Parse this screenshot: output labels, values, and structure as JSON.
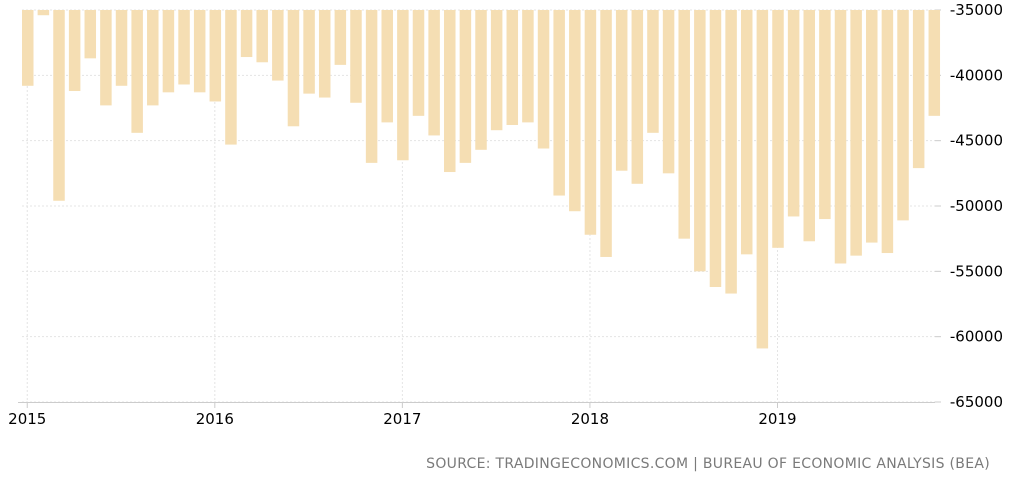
{
  "source_text": "SOURCE: TRADINGECONOMICS.COM | BUREAU OF ECONOMIC ANALYSIS (BEA)",
  "chart_data": {
    "type": "bar",
    "title": "",
    "xlabel": "",
    "ylabel": "",
    "bar_color": "#f5deb3",
    "grid": true,
    "ylim": [
      -65000,
      -35000
    ],
    "yticks": [
      -35000,
      -40000,
      -45000,
      -50000,
      -55000,
      -60000,
      -65000
    ],
    "ytick_labels": [
      "-35000",
      "-40000",
      "-45000",
      "-50000",
      "-55000",
      "-60000",
      "-65000"
    ],
    "xticks": [
      "2015",
      "2016",
      "2017",
      "2018",
      "2019"
    ],
    "categories": [
      "2015-01",
      "2015-02",
      "2015-03",
      "2015-04",
      "2015-05",
      "2015-06",
      "2015-07",
      "2015-08",
      "2015-09",
      "2015-10",
      "2015-11",
      "2015-12",
      "2016-01",
      "2016-02",
      "2016-03",
      "2016-04",
      "2016-05",
      "2016-06",
      "2016-07",
      "2016-08",
      "2016-09",
      "2016-10",
      "2016-11",
      "2016-12",
      "2017-01",
      "2017-02",
      "2017-03",
      "2017-04",
      "2017-05",
      "2017-06",
      "2017-07",
      "2017-08",
      "2017-09",
      "2017-10",
      "2017-11",
      "2017-12",
      "2018-01",
      "2018-02",
      "2018-03",
      "2018-04",
      "2018-05",
      "2018-06",
      "2018-07",
      "2018-08",
      "2018-09",
      "2018-10",
      "2018-11",
      "2018-12",
      "2019-01",
      "2019-02",
      "2019-03",
      "2019-04",
      "2019-05",
      "2019-06",
      "2019-07",
      "2019-08",
      "2019-09",
      "2019-10",
      "2019-11"
    ],
    "values": [
      -40800,
      -35400,
      -49600,
      -41200,
      -38700,
      -42300,
      -40800,
      -44400,
      -42300,
      -41300,
      -40700,
      -41300,
      -42000,
      -45300,
      -38600,
      -39000,
      -40400,
      -43900,
      -41400,
      -41700,
      -39200,
      -42100,
      -46700,
      -43600,
      -46500,
      -43100,
      -44600,
      -47400,
      -46700,
      -45700,
      -44200,
      -43800,
      -43600,
      -45600,
      -49200,
      -50400,
      -52200,
      -53900,
      -47300,
      -48300,
      -44400,
      -47500,
      -52500,
      -55000,
      -56200,
      -56700,
      -53700,
      -60900,
      -53200,
      -50800,
      -52700,
      -51000,
      -54400,
      -53800,
      -52800,
      -53600,
      -51100,
      -47100,
      -43100
    ]
  }
}
